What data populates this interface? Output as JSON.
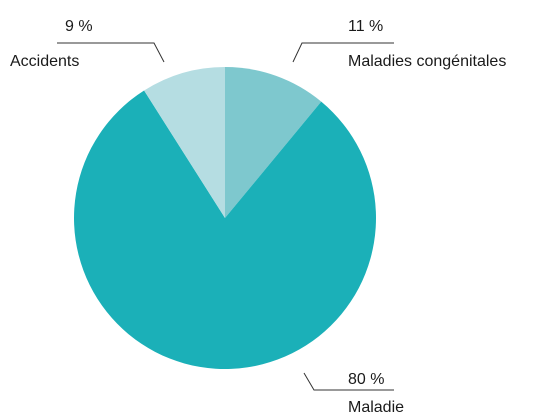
{
  "chart_data": {
    "type": "pie",
    "title": "",
    "start_angle_deg": 0,
    "direction": "clockwise",
    "legend": "none",
    "slices": [
      {
        "label": "Maladies congénitales",
        "value": 11,
        "display": "11 %",
        "color": "#7ec8ce"
      },
      {
        "label": "Maladie",
        "value": 80,
        "display": "80 %",
        "color": "#1bb0b8"
      },
      {
        "label": "Accidents",
        "value": 9,
        "display": "9 %",
        "color": "#b5dde2"
      }
    ]
  }
}
